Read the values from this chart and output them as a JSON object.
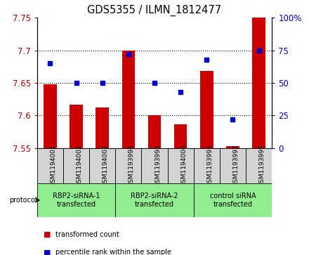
{
  "title": "GDS5355 / ILMN_1812477",
  "samples": [
    "GSM1194001",
    "GSM1194002",
    "GSM1194003",
    "GSM1193996",
    "GSM1193998",
    "GSM1194000",
    "GSM1193995",
    "GSM1193997",
    "GSM1193999"
  ],
  "bar_values": [
    7.648,
    7.617,
    7.612,
    7.7,
    7.6,
    7.586,
    7.668,
    7.553,
    7.75
  ],
  "dot_values": [
    65,
    50,
    50,
    72,
    50,
    43,
    68,
    22,
    75
  ],
  "bar_bottom": 7.55,
  "ylim_left": [
    7.55,
    7.75
  ],
  "ylim_right": [
    0,
    100
  ],
  "yticks_left": [
    7.55,
    7.6,
    7.65,
    7.7,
    7.75
  ],
  "yticks_right": [
    0,
    25,
    50,
    75,
    100
  ],
  "ytick_labels_left": [
    "7.55",
    "7.6",
    "7.65",
    "7.7",
    "7.75"
  ],
  "ytick_labels_right": [
    "0",
    "25",
    "50",
    "75",
    "100%"
  ],
  "bar_color": "#cc0000",
  "dot_color": "#0000cc",
  "protocols": [
    {
      "label": "RBP2-siRNA-1\ntransfected",
      "start": 0,
      "end": 3,
      "color": "#90ee90"
    },
    {
      "label": "RBP2-siRNA-2\ntransfected",
      "start": 3,
      "end": 6,
      "color": "#90ee90"
    },
    {
      "label": "control siRNA\ntransfected",
      "start": 6,
      "end": 9,
      "color": "#90ee90"
    }
  ],
  "legend_bar_label": "transformed count",
  "legend_dot_label": "percentile rank within the sample",
  "bg_color": "#ffffff",
  "cell_bg": "#d3d3d3",
  "grid_yticks": [
    7.6,
    7.65,
    7.7
  ]
}
